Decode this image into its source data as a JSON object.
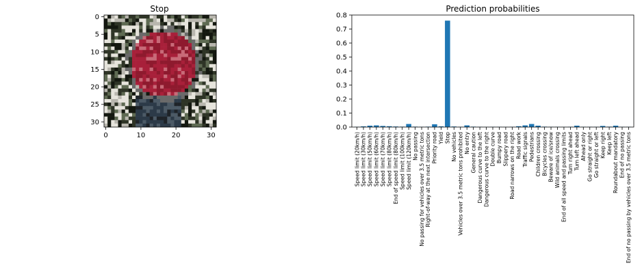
{
  "image_panel": {
    "title": "Stop",
    "xticks": [
      "0",
      "10",
      "20",
      "30"
    ],
    "yticks": [
      "0",
      "5",
      "10",
      "15",
      "20",
      "25",
      "30"
    ],
    "xlim": [
      -0.5,
      31.5
    ],
    "ylim": [
      31.5,
      -0.5
    ],
    "description_colors": {
      "sign_red": "#a02030",
      "background_dark": "#2a3025",
      "background_light": "#d8d8d0"
    }
  },
  "chart_data": {
    "type": "bar",
    "title": "Prediction probabilities",
    "xlabel": "",
    "ylabel": "",
    "ylim": [
      0,
      0.8
    ],
    "yticks": [
      "0.0",
      "0.1",
      "0.2",
      "0.3",
      "0.4",
      "0.5",
      "0.6",
      "0.7",
      "0.8"
    ],
    "bar_color": "#1f77b4",
    "categories": [
      "Speed limit (20km/h)",
      "Speed limit (30km/h)",
      "Speed limit (50km/h)",
      "Speed limit (60km/h)",
      "Speed limit (70km/h)",
      "Speed limit (80km/h)",
      "End of speed limit (80km/h)",
      "Speed limit (100km/h)",
      "Speed limit (120km/h)",
      "No passing",
      "No passing for vehicles over 3.5 metric tons",
      "Right-of-way at the next intersection",
      "Priority road",
      "Yield",
      "Stop",
      "No vehicles",
      "Vehicles over 3.5 metric tons prohibited",
      "No entry",
      "General caution",
      "Dangerous curve to the left",
      "Dangerous curve to the right",
      "Double curve",
      "Bumpy road",
      "Slippery road",
      "Road narrows on the right",
      "Road work",
      "Traffic signals",
      "Pedestrians",
      "Children crossing",
      "Bicycles crossing",
      "Beware of ice/snow",
      "Wild animals crossing",
      "End of all speed and passing limits",
      "Turn right ahead",
      "Turn left ahead",
      "Ahead only",
      "Go straight or right",
      "Go straight or left",
      "Keep right",
      "Keep left",
      "Roundabout mandatory",
      "End of no passing",
      "End of no passing by vehicles over 3.5 metric tons"
    ],
    "values": [
      0.002,
      0.005,
      0.01,
      0.012,
      0.008,
      0.006,
      0.004,
      0.003,
      0.022,
      0.003,
      0.002,
      0.003,
      0.02,
      0.005,
      0.76,
      0.004,
      0.002,
      0.012,
      0.003,
      0.002,
      0.001,
      0.002,
      0.002,
      0.001,
      0.002,
      0.006,
      0.012,
      0.022,
      0.01,
      0.003,
      0.002,
      0.002,
      0.001,
      0.002,
      0.01,
      0.002,
      0.002,
      0.002,
      0.008,
      0.003,
      0.01,
      0.002,
      0.002
    ]
  }
}
